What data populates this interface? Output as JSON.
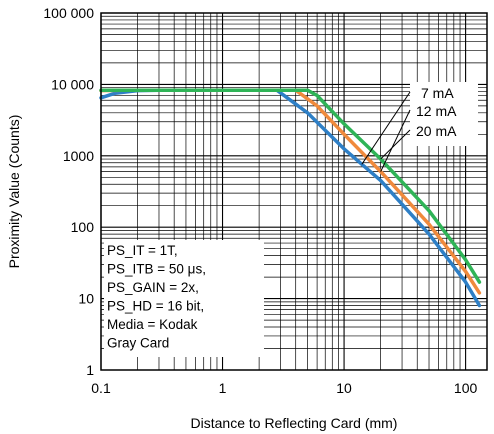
{
  "chart_data": {
    "type": "line",
    "title": "",
    "xlabel": "Distance to Reflecting Card (mm)",
    "ylabel": "Proximity Value (Counts)",
    "xscale": "log",
    "yscale": "log",
    "xlim": [
      0.1,
      150
    ],
    "ylim": [
      1,
      100000
    ],
    "grid": true,
    "xticks": [
      {
        "value": 0.1,
        "label": "0.1"
      },
      {
        "value": 1,
        "label": "1"
      },
      {
        "value": 10,
        "label": "10"
      },
      {
        "value": 100,
        "label": "100"
      }
    ],
    "yticks": [
      {
        "value": 1,
        "label": "1"
      },
      {
        "value": 10,
        "label": "10"
      },
      {
        "value": 100,
        "label": "100"
      },
      {
        "value": 1000,
        "label": "1000"
      },
      {
        "value": 10000,
        "label": "10 000"
      },
      {
        "value": 100000,
        "label": "100 000"
      }
    ],
    "series": [
      {
        "name": "7 mA",
        "color": "#2e7fc6",
        "x": [
          0.1,
          0.13,
          0.2,
          0.3,
          1,
          2.8,
          5,
          10,
          20,
          50,
          100,
          130
        ],
        "y": [
          6500,
          7500,
          8200,
          8300,
          8300,
          8300,
          4000,
          1250,
          450,
          80,
          17,
          8
        ]
      },
      {
        "name": "12 mA",
        "color": "#f08a3c",
        "x": [
          0.1,
          0.15,
          0.3,
          1,
          4,
          6,
          10,
          20,
          50,
          100,
          130
        ],
        "y": [
          8200,
          8300,
          8300,
          8300,
          8300,
          5000,
          2000,
          600,
          110,
          24,
          12
        ]
      },
      {
        "name": "20 mA",
        "color": "#2fb457",
        "x": [
          0.1,
          0.3,
          1,
          5,
          6,
          10,
          20,
          50,
          100,
          130
        ],
        "y": [
          8300,
          8300,
          8300,
          8300,
          7000,
          2800,
          900,
          170,
          35,
          17
        ]
      }
    ],
    "annotation_lines": [
      "PS_IT = 1T,",
      "PS_ITB = 50 μs,",
      "PS_GAIN = 2x,",
      "PS_HD = 16 bit,",
      "Media = Kodak",
      "Gray Card"
    ]
  }
}
